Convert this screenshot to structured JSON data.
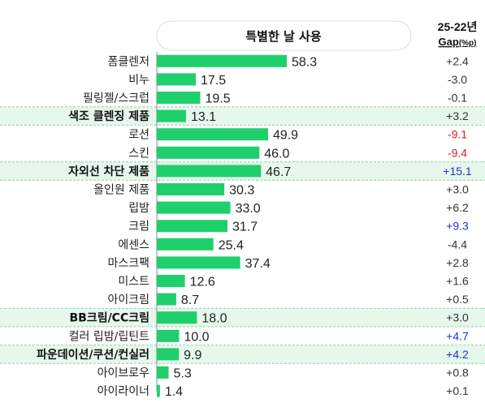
{
  "chart_data": {
    "type": "bar",
    "orientation": "horizontal",
    "title": "특별한 날 사용",
    "gap_header": {
      "line1": "25-22년",
      "line2_main": "Gap",
      "line2_unit": "(%p)"
    },
    "xlim": [
      0,
      100
    ],
    "grid": false,
    "categories": [
      "폼클렌저",
      "비누",
      "필링젤/스크럽",
      "색조 클렌징 제품",
      "로션",
      "스킨",
      "자외선 차단 제품",
      "올인원 제품",
      "립밤",
      "크림",
      "에센스",
      "마스크팩",
      "미스트",
      "아이크림",
      "BB크림/CC크림",
      "컬러 립밤/립틴트",
      "파운데이션/쿠션/컨실러",
      "아이브로우",
      "아이라이너"
    ],
    "highlighted": [
      "색조 클렌징 제품",
      "자외선 차단 제품",
      "BB크림/CC크림",
      "파운데이션/쿠션/컨실러"
    ],
    "values": [
      58.3,
      17.5,
      19.5,
      13.1,
      49.9,
      46.0,
      46.7,
      30.3,
      33.0,
      31.7,
      25.4,
      37.4,
      12.6,
      8.7,
      18.0,
      10.0,
      9.9,
      5.3,
      1.4
    ],
    "value_labels": [
      "58.3",
      "17.5",
      "19.5",
      "13.1",
      "49.9",
      "46.0",
      "46.7",
      "30.3",
      "33.0",
      "31.7",
      "25.4",
      "37.4",
      "12.6",
      "8.7",
      "18.0",
      "10.0",
      "9.9",
      "5.3",
      "1.4"
    ],
    "gap": [
      "+2.4",
      "-3.0",
      "-0.1",
      "+3.2",
      "-9.1",
      "-9.4",
      "+15.1",
      "+3.0",
      "+6.2",
      "+9.3",
      "-4.4",
      "+2.8",
      "+1.6",
      "+0.5",
      "+3.0",
      "+4.7",
      "+4.2",
      "+0.8",
      "+0.1"
    ],
    "gap_status": [
      "neutral",
      "neutral",
      "neutral",
      "neutral",
      "down",
      "down",
      "up",
      "neutral",
      "neutral",
      "up",
      "neutral",
      "neutral",
      "neutral",
      "neutral",
      "neutral",
      "up",
      "up",
      "neutral",
      "neutral"
    ]
  },
  "colors": {
    "bar": "#1ecf6c",
    "highlight_band": "#e6f7ec",
    "gap_up": "#1f2fd6",
    "gap_down": "#e11818",
    "gap_neutral": "#333333",
    "axis": "#888888",
    "divider": "#8fd3a5"
  }
}
